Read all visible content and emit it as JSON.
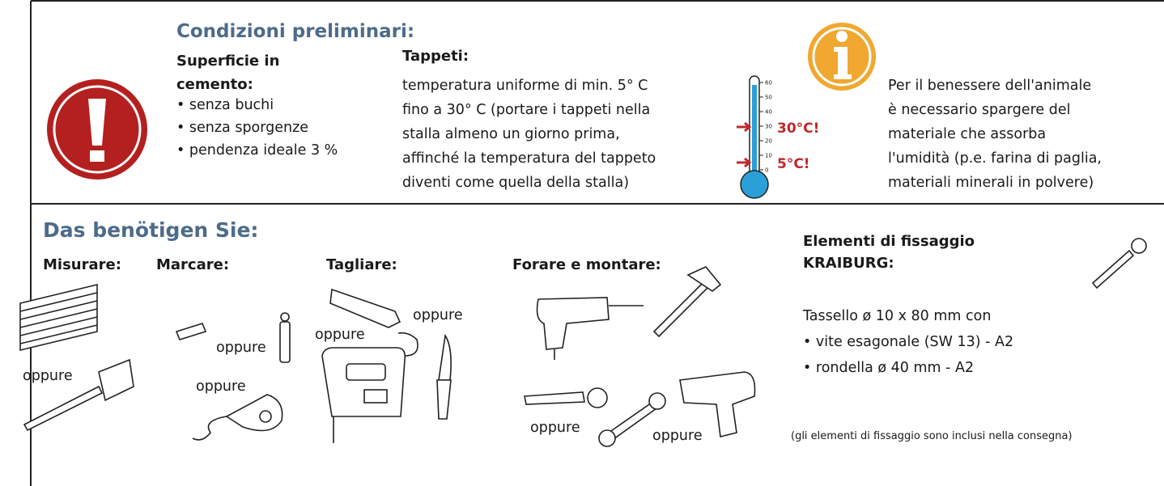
{
  "preconditions": {
    "title": "Condizioni preliminari:",
    "concrete": {
      "heading": [
        "Superficie in",
        "cemento:"
      ],
      "items": [
        "• senza buchi",
        "• senza sporgenze",
        "• pendenza ideale 3 %"
      ]
    },
    "mats": {
      "heading": "Tappeti:",
      "lines": [
        "temperatura uniforme di min. 5° C",
        "fino a 30° C (portare i tappeti nella",
        "stalla almeno un giorno prima,",
        "affinché la temperatura del tappeto",
        "diventi come quella della stalla)"
      ]
    },
    "thermometer": {
      "scale": [
        60,
        50,
        40,
        30,
        20,
        10,
        0
      ],
      "max_label": "30°C!",
      "min_label": "5°C!"
    },
    "info": [
      "Per il benessere dell'animale",
      "è necessario spargere del",
      "materiale che assorba",
      "l'umidità (p.e. farina di paglia,",
      "materiali minerali in polvere)"
    ]
  },
  "tools": {
    "title": "Das benötigen Sie:",
    "or_label": "oppure",
    "groups": [
      "Misurare:",
      "Marcare:",
      "Tagliare:",
      "Forare e montare:"
    ],
    "fixing": {
      "heading": [
        "Elementi di fissaggio",
        "KRAIBURG:"
      ],
      "lines": [
        "Tassello ø 10 x 80 mm con",
        "• vite esagonale (SW 13) - A2",
        "• rondella ø 40 mm - A2"
      ],
      "note": "(gli elementi di fissaggio sono inclusi nella consegna)"
    }
  }
}
